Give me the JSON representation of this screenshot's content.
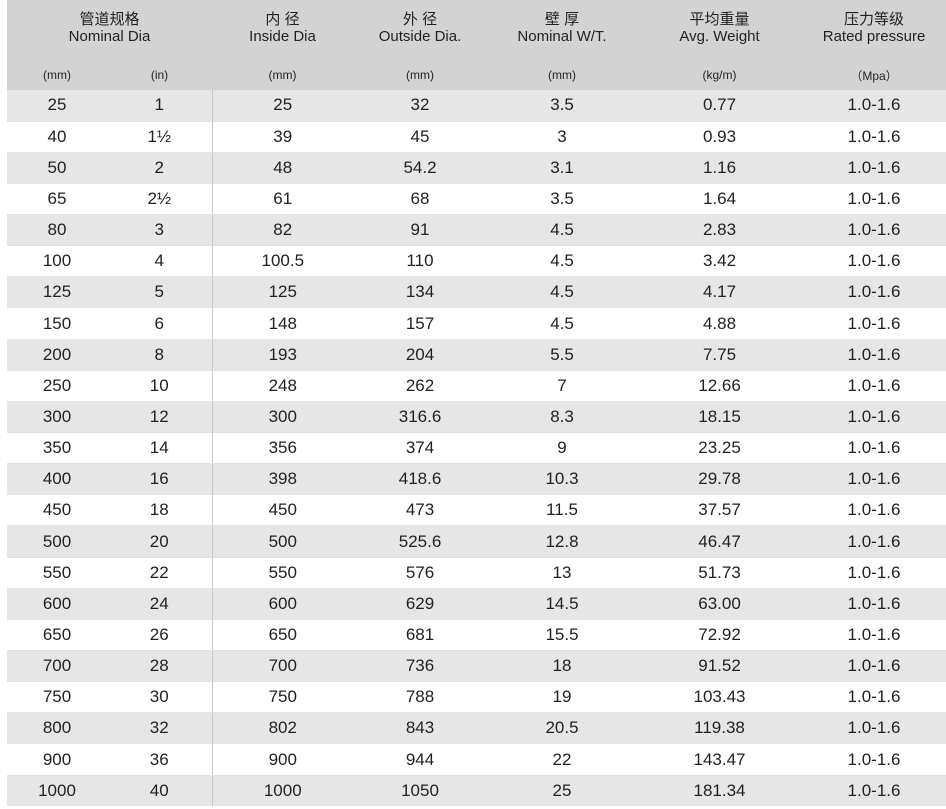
{
  "headers": [
    {
      "cn": "管道规格",
      "en": "Nominal Dia"
    },
    {
      "cn": "内 径",
      "en": "Inside Dia"
    },
    {
      "cn": "外 径",
      "en": "Outside Dia."
    },
    {
      "cn": "壁 厚",
      "en": "Nominal W/T."
    },
    {
      "cn": "平均重量",
      "en": "Avg. Weight"
    },
    {
      "cn": "压力等级",
      "en": "Rated pressure"
    }
  ],
  "units": [
    "(mm)",
    "(in)",
    "(mm)",
    "(mm)",
    "(mm)",
    "(kg/m)",
    "（Mpa）"
  ],
  "rows": [
    [
      "25",
      "1",
      "25",
      "32",
      "3.5",
      "0.77",
      "1.0-1.6"
    ],
    [
      "40",
      "1½",
      "39",
      "45",
      "3",
      "0.93",
      "1.0-1.6"
    ],
    [
      "50",
      "2",
      "48",
      "54.2",
      "3.1",
      "1.16",
      "1.0-1.6"
    ],
    [
      "65",
      "2½",
      "61",
      "68",
      "3.5",
      "1.64",
      "1.0-1.6"
    ],
    [
      "80",
      "3",
      "82",
      "91",
      "4.5",
      "2.83",
      "1.0-1.6"
    ],
    [
      "100",
      "4",
      "100.5",
      "110",
      "4.5",
      "3.42",
      "1.0-1.6"
    ],
    [
      "125",
      "5",
      "125",
      "134",
      "4.5",
      "4.17",
      "1.0-1.6"
    ],
    [
      "150",
      "6",
      "148",
      "157",
      "4.5",
      "4.88",
      "1.0-1.6"
    ],
    [
      "200",
      "8",
      "193",
      "204",
      "5.5",
      "7.75",
      "1.0-1.6"
    ],
    [
      "250",
      "10",
      "248",
      "262",
      "7",
      "12.66",
      "1.0-1.6"
    ],
    [
      "300",
      "12",
      "300",
      "316.6",
      "8.3",
      "18.15",
      "1.0-1.6"
    ],
    [
      "350",
      "14",
      "356",
      "374",
      "9",
      "23.25",
      "1.0-1.6"
    ],
    [
      "400",
      "16",
      "398",
      "418.6",
      "10.3",
      "29.78",
      "1.0-1.6"
    ],
    [
      "450",
      "18",
      "450",
      "473",
      "11.5",
      "37.57",
      "1.0-1.6"
    ],
    [
      "500",
      "20",
      "500",
      "525.6",
      "12.8",
      "46.47",
      "1.0-1.6"
    ],
    [
      "550",
      "22",
      "550",
      "576",
      "13",
      "51.73",
      "1.0-1.6"
    ],
    [
      "600",
      "24",
      "600",
      "629",
      "14.5",
      "63.00",
      "1.0-1.6"
    ],
    [
      "650",
      "26",
      "650",
      "681",
      "15.5",
      "72.92",
      "1.0-1.6"
    ],
    [
      "700",
      "28",
      "700",
      "736",
      "18",
      "91.52",
      "1.0-1.6"
    ],
    [
      "750",
      "30",
      "750",
      "788",
      "19",
      "103.43",
      "1.0-1.6"
    ],
    [
      "800",
      "32",
      "802",
      "843",
      "20.5",
      "119.38",
      "1.0-1.6"
    ],
    [
      "900",
      "36",
      "900",
      "944",
      "22",
      "143.47",
      "1.0-1.6"
    ],
    [
      "1000",
      "40",
      "1000",
      "1050",
      "25",
      "181.34",
      "1.0-1.6"
    ]
  ]
}
